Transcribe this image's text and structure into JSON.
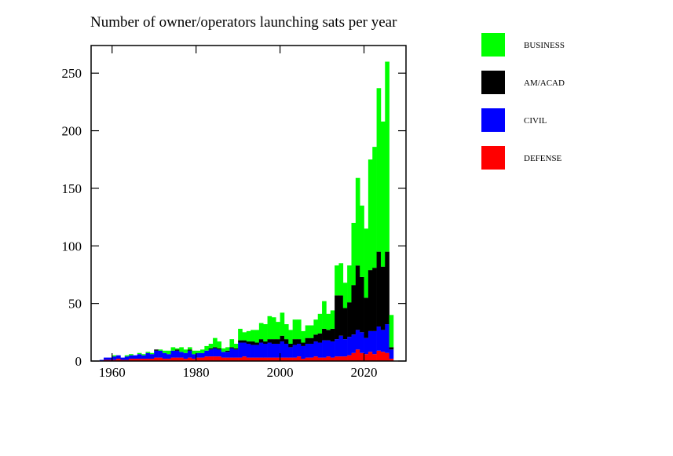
{
  "chart_data": {
    "type": "stacked-bar",
    "title": "Number of owner/operators launching sats per year",
    "x": [
      1957,
      1958,
      1959,
      1960,
      1961,
      1962,
      1963,
      1964,
      1965,
      1966,
      1967,
      1968,
      1969,
      1970,
      1971,
      1972,
      1973,
      1974,
      1975,
      1976,
      1977,
      1978,
      1979,
      1980,
      1981,
      1982,
      1983,
      1984,
      1985,
      1986,
      1987,
      1988,
      1989,
      1990,
      1991,
      1992,
      1993,
      1994,
      1995,
      1996,
      1997,
      1998,
      1999,
      2000,
      2001,
      2002,
      2003,
      2004,
      2005,
      2006,
      2007,
      2008,
      2009,
      2010,
      2011,
      2012,
      2013,
      2014,
      2015,
      2016,
      2017,
      2018,
      2019,
      2020,
      2021,
      2022,
      2023,
      2024,
      2025,
      2026
    ],
    "series": [
      {
        "name": "DEFENSE",
        "color": "#ff0000",
        "values": [
          0,
          1,
          1,
          1,
          2,
          1,
          1,
          2,
          2,
          2,
          2,
          2,
          2,
          3,
          3,
          2,
          2,
          3,
          3,
          3,
          2,
          3,
          2,
          3,
          3,
          4,
          4,
          4,
          4,
          3,
          3,
          3,
          3,
          3,
          4,
          3,
          3,
          3,
          3,
          3,
          3,
          3,
          3,
          3,
          3,
          3,
          3,
          4,
          2,
          3,
          3,
          4,
          3,
          3,
          4,
          3,
          4,
          4,
          4,
          5,
          7,
          10,
          7,
          6,
          8,
          6,
          9,
          8,
          7,
          2
        ]
      },
      {
        "name": "CIVIL",
        "color": "#0000ff",
        "values": [
          1,
          2,
          2,
          3,
          3,
          2,
          3,
          3,
          3,
          4,
          3,
          5,
          4,
          6,
          6,
          5,
          4,
          6,
          6,
          5,
          5,
          6,
          4,
          4,
          4,
          5,
          6,
          7,
          6,
          5,
          5,
          8,
          7,
          13,
          12,
          12,
          11,
          11,
          13,
          12,
          13,
          12,
          12,
          14,
          12,
          9,
          11,
          11,
          11,
          12,
          12,
          13,
          13,
          15,
          14,
          14,
          15,
          18,
          15,
          16,
          16,
          17,
          18,
          14,
          18,
          20,
          21,
          19,
          25,
          8
        ]
      },
      {
        "name": "AM/ACAD",
        "color": "#000000",
        "values": [
          0,
          0,
          0,
          0,
          0,
          0,
          0,
          0,
          0,
          0,
          0,
          0,
          0,
          1,
          0,
          0,
          0,
          0,
          1,
          0,
          0,
          1,
          0,
          0,
          0,
          0,
          1,
          1,
          1,
          0,
          1,
          1,
          1,
          2,
          2,
          2,
          3,
          2,
          3,
          2,
          3,
          4,
          4,
          5,
          4,
          3,
          5,
          4,
          3,
          5,
          5,
          6,
          8,
          10,
          9,
          11,
          38,
          35,
          27,
          30,
          43,
          56,
          48,
          35,
          53,
          55,
          65,
          55,
          63,
          2
        ]
      },
      {
        "name": "BUSINESS",
        "color": "#00ff00",
        "values": [
          0,
          0,
          0,
          1,
          0,
          0,
          1,
          1,
          0,
          1,
          1,
          1,
          1,
          0,
          1,
          2,
          3,
          3,
          1,
          4,
          3,
          2,
          3,
          2,
          3,
          4,
          4,
          8,
          6,
          3,
          3,
          7,
          4,
          10,
          7,
          9,
          10,
          11,
          14,
          15,
          20,
          19,
          15,
          20,
          13,
          12,
          17,
          17,
          10,
          11,
          11,
          13,
          17,
          24,
          14,
          16,
          26,
          28,
          22,
          32,
          54,
          76,
          62,
          60,
          96,
          105,
          142,
          126,
          165,
          28
        ]
      }
    ],
    "xlim": [
      1955,
      2030
    ],
    "ylim": [
      0,
      274
    ],
    "xticks": [
      1960,
      1980,
      2000,
      2020
    ],
    "yticks": [
      0,
      50,
      100,
      150,
      200,
      250
    ]
  }
}
